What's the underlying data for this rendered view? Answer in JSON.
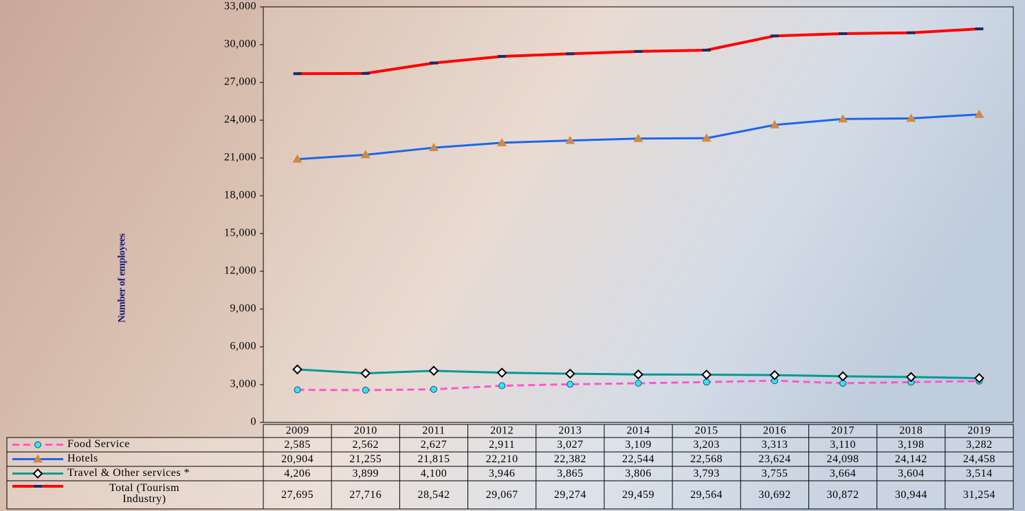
{
  "chart_data": {
    "type": "line",
    "y_axis_label": "Number of employees",
    "categories": [
      "2009",
      "2010",
      "2011",
      "2012",
      "2013",
      "2014",
      "2015",
      "2016",
      "2017",
      "2018",
      "2019"
    ],
    "ylim": [
      0,
      33000
    ],
    "yticks": [
      0,
      {
        "value": 3000,
        "label": "3,000"
      },
      {
        "value": 6000,
        "label": "6,000"
      },
      {
        "value": 9000,
        "label": "9,000"
      },
      {
        "value": 12000,
        "label": "12,000"
      },
      {
        "value": 15000,
        "label": "15,000"
      },
      {
        "value": 18000,
        "label": "18,000"
      },
      {
        "value": 21000,
        "label": "21,000"
      },
      {
        "value": 24000,
        "label": "24,000"
      },
      {
        "value": 27000,
        "label": "27,000"
      },
      {
        "value": 30000,
        "label": "30,000"
      },
      {
        "value": 33000,
        "label": "33,000"
      }
    ],
    "series": [
      {
        "name": "Food Service",
        "color": "#ff55cc",
        "marker": "circle",
        "marker_color": "#33e5f0",
        "dashed": true,
        "values": [
          2585,
          2562,
          2627,
          2911,
          3027,
          3109,
          3203,
          3313,
          3110,
          3198,
          3282
        ],
        "value_labels": [
          "2,585",
          "2,562",
          "2,627",
          "2,911",
          "3,027",
          "3,109",
          "3,203",
          "3,313",
          "3,110",
          "3,198",
          "3,282"
        ]
      },
      {
        "name": "Hotels",
        "color": "#1a66ee",
        "marker": "triangle",
        "marker_color": "#d08a44",
        "dashed": false,
        "values": [
          20904,
          21255,
          21815,
          22210,
          22382,
          22544,
          22568,
          23624,
          24098,
          24142,
          24458
        ],
        "value_labels": [
          "20,904",
          "21,255",
          "21,815",
          "22,210",
          "22,382",
          "22,544",
          "22,568",
          "23,624",
          "24,098",
          "24,142",
          "24,458"
        ]
      },
      {
        "name": "Travel & Other services *",
        "color": "#009a94",
        "marker": "diamond",
        "marker_color": "#ffffff",
        "dashed": false,
        "values": [
          4206,
          3899,
          4100,
          3946,
          3865,
          3806,
          3793,
          3755,
          3664,
          3604,
          3514
        ],
        "value_labels": [
          "4,206",
          "3,899",
          "4,100",
          "3,946",
          "3,865",
          "3,806",
          "3,793",
          "3,755",
          "3,664",
          "3,604",
          "3,514"
        ]
      },
      {
        "name": "Total (Tourism Industry)",
        "color": "#ff0000",
        "marker": "dash",
        "marker_color": "#1a2a66",
        "dashed": false,
        "values": [
          27695,
          27716,
          28542,
          29067,
          29274,
          29459,
          29564,
          30692,
          30872,
          30944,
          31254
        ],
        "value_labels": [
          "27,695",
          "27,716",
          "28,542",
          "29,067",
          "29,274",
          "29,459",
          "29,564",
          "30,692",
          "30,872",
          "30,944",
          "31,254"
        ]
      }
    ]
  }
}
